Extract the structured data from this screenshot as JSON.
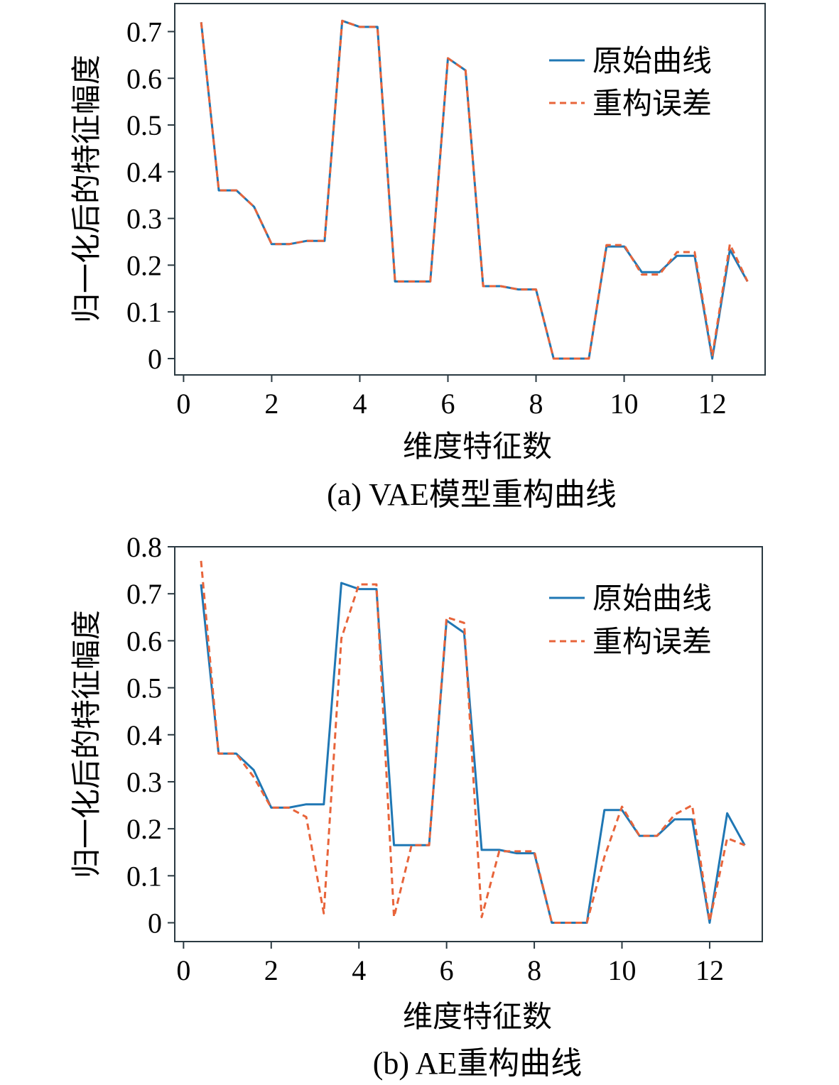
{
  "charts": [
    {
      "caption": "(a) VAE模型重构曲线",
      "xlabel": "维度特征数",
      "ylabel": "归一化后的特征幅度",
      "legend": {
        "position": "top-right",
        "entries": [
          "原始曲线",
          "重构误差"
        ]
      },
      "x_ticks": [
        "0",
        "2",
        "4",
        "6",
        "8",
        "10",
        "12"
      ],
      "y_ticks": [
        "0",
        "0.1",
        "0.2",
        "0.3",
        "0.4",
        "0.5",
        "0.6",
        "0.7"
      ]
    },
    {
      "caption": "(b) AE重构曲线",
      "xlabel": "维度特征数",
      "ylabel": "归一化后的特征幅度",
      "legend": {
        "position": "top-right",
        "entries": [
          "原始曲线",
          "重构误差"
        ]
      },
      "x_ticks": [
        "0",
        "2",
        "4",
        "6",
        "8",
        "10",
        "12"
      ],
      "y_ticks": [
        "0",
        "0.1",
        "0.2",
        "0.3",
        "0.4",
        "0.5",
        "0.6",
        "0.7",
        "0.8"
      ]
    }
  ],
  "colors": {
    "original": "#1f77b4",
    "reconstruction": "#e8643a",
    "axes": "#2b3a42"
  },
  "chart_data": [
    {
      "type": "line",
      "title": "(a) VAE模型重构曲线",
      "xlabel": "维度特征数",
      "ylabel": "归一化后的特征幅度",
      "xlim": [
        -0.2,
        13.2
      ],
      "ylim": [
        -0.035,
        0.76
      ],
      "grid": false,
      "legend": "top-right",
      "x": [
        0.4,
        0.8,
        1.2,
        1.6,
        2.0,
        2.4,
        2.8,
        3.2,
        3.6,
        4.0,
        4.4,
        4.8,
        5.2,
        5.6,
        6.0,
        6.4,
        6.8,
        7.2,
        7.6,
        8.0,
        8.4,
        8.8,
        9.2,
        9.6,
        10.0,
        10.4,
        10.8,
        11.2,
        11.6,
        12.0,
        12.4,
        12.8
      ],
      "series": [
        {
          "name": "原始曲线",
          "style": "solid",
          "values": [
            0.72,
            0.36,
            0.36,
            0.325,
            0.245,
            0.245,
            0.252,
            0.252,
            0.723,
            0.71,
            0.71,
            0.165,
            0.165,
            0.165,
            0.643,
            0.617,
            0.155,
            0.155,
            0.148,
            0.148,
            0.0,
            0.0,
            0.0,
            0.24,
            0.24,
            0.185,
            0.185,
            0.22,
            0.22,
            0.0,
            0.233,
            0.165
          ]
        },
        {
          "name": "重构误差",
          "style": "dashed",
          "values": [
            0.72,
            0.36,
            0.36,
            0.325,
            0.245,
            0.245,
            0.252,
            0.252,
            0.723,
            0.71,
            0.71,
            0.165,
            0.165,
            0.165,
            0.643,
            0.617,
            0.155,
            0.155,
            0.148,
            0.148,
            0.0,
            0.0,
            0.0,
            0.243,
            0.243,
            0.18,
            0.18,
            0.228,
            0.228,
            0.005,
            0.245,
            0.165
          ]
        }
      ]
    },
    {
      "type": "line",
      "title": "(b) AE重构曲线",
      "xlabel": "维度特征数",
      "ylabel": "归一化后的特征幅度",
      "xlim": [
        -0.2,
        13.2
      ],
      "ylim": [
        -0.04,
        0.8
      ],
      "grid": false,
      "legend": "top-right",
      "x": [
        0.4,
        0.8,
        1.2,
        1.6,
        2.0,
        2.4,
        2.8,
        3.2,
        3.6,
        4.0,
        4.4,
        4.8,
        5.2,
        5.6,
        6.0,
        6.4,
        6.8,
        7.2,
        7.6,
        8.0,
        8.4,
        8.8,
        9.2,
        9.6,
        10.0,
        10.4,
        10.8,
        11.2,
        11.6,
        12.0,
        12.4,
        12.8
      ],
      "series": [
        {
          "name": "原始曲线",
          "style": "solid",
          "values": [
            0.72,
            0.36,
            0.36,
            0.325,
            0.245,
            0.245,
            0.252,
            0.252,
            0.723,
            0.71,
            0.71,
            0.165,
            0.165,
            0.165,
            0.643,
            0.617,
            0.155,
            0.155,
            0.148,
            0.148,
            0.0,
            0.0,
            0.0,
            0.24,
            0.24,
            0.185,
            0.185,
            0.22,
            0.22,
            0.0,
            0.233,
            0.165
          ]
        },
        {
          "name": "重构误差",
          "style": "dashed",
          "values": [
            0.77,
            0.36,
            0.36,
            0.31,
            0.245,
            0.245,
            0.225,
            0.02,
            0.605,
            0.72,
            0.72,
            0.012,
            0.165,
            0.165,
            0.65,
            0.638,
            0.012,
            0.152,
            0.152,
            0.152,
            0.0,
            0.0,
            0.0,
            0.14,
            0.247,
            0.185,
            0.185,
            0.23,
            0.25,
            0.003,
            0.18,
            0.165
          ]
        }
      ]
    }
  ]
}
